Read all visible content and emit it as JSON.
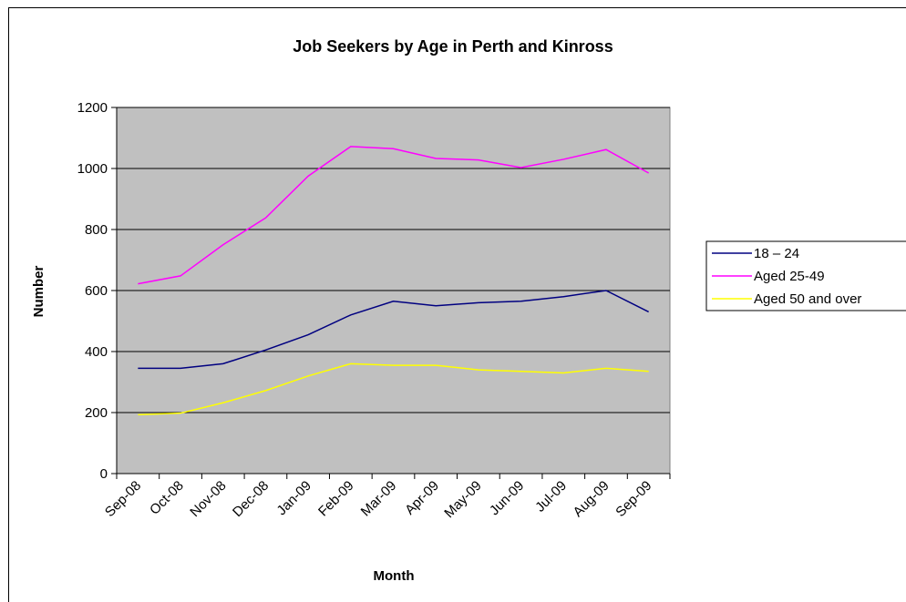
{
  "chart_data": {
    "type": "line",
    "title": "Job Seekers by Age in Perth and Kinross",
    "x_label": "Month",
    "y_label": "Number",
    "categories": [
      "Sep-08",
      "Oct-08",
      "Nov-08",
      "Dec-08",
      "Jan-09",
      "Feb-09",
      "Mar-09",
      "Apr-09",
      "May-09",
      "Jun-09",
      "Jul-09",
      "Aug-09",
      "Sep-09"
    ],
    "series": [
      {
        "name": "18 – 24",
        "color": "#000080",
        "values": [
          345,
          345,
          360,
          405,
          455,
          520,
          565,
          550,
          560,
          565,
          580,
          600,
          530
        ]
      },
      {
        "name": "Aged 25-49",
        "color": "#ff00ff",
        "values": [
          622,
          648,
          750,
          838,
          975,
          1072,
          1065,
          1033,
          1028,
          1003,
          1030,
          1062,
          985
        ]
      },
      {
        "name": "Aged 50 and over",
        "color": "#ffff00",
        "values": [
          193,
          198,
          232,
          272,
          320,
          360,
          355,
          355,
          340,
          335,
          330,
          345,
          335
        ]
      }
    ],
    "ylim": [
      0,
      1200
    ],
    "yticks": [
      0,
      200,
      400,
      600,
      800,
      1000,
      1200
    ],
    "grid": true,
    "legend": "right",
    "plot_background": "#c0c0c0"
  }
}
